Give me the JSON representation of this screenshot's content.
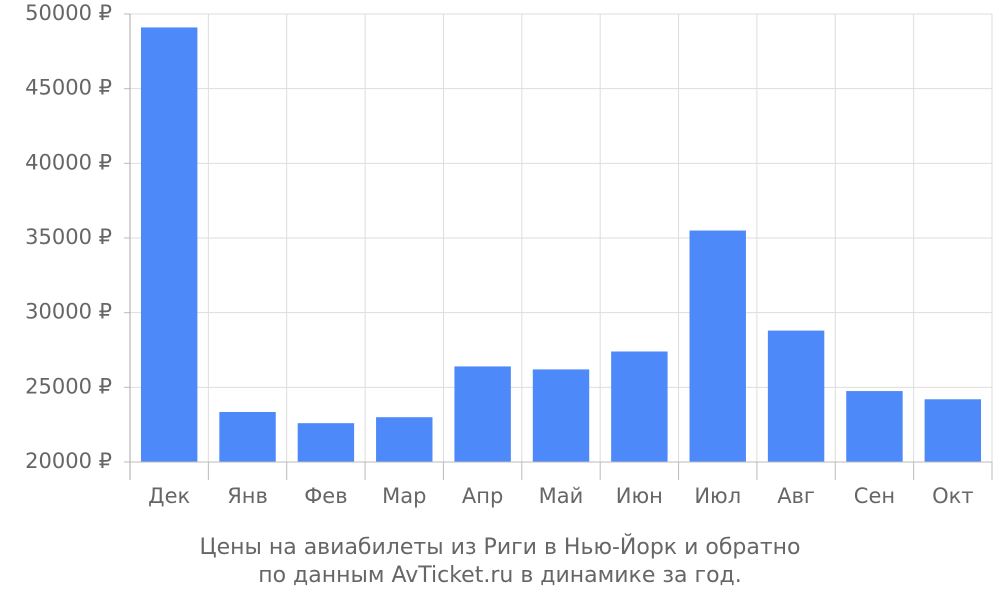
{
  "chart_data": {
    "type": "bar",
    "title": "Цены на авиабилеты из Риги в Нью-Йорк и обратно",
    "subtitle": "по данным AvTicket.ru в динамике за год.",
    "categories": [
      "Дек",
      "Янв",
      "Фев",
      "Мар",
      "Апр",
      "Май",
      "Июн",
      "Июл",
      "Авг",
      "Сен",
      "Окт"
    ],
    "values": [
      49100,
      23350,
      22600,
      23000,
      26400,
      26200,
      27400,
      35500,
      28800,
      24750,
      24200
    ],
    "color": "#4d89f9",
    "ylim": [
      20000,
      50000
    ],
    "yticks": [
      {
        "value": 20000,
        "label": "20000 ₽"
      },
      {
        "value": 25000,
        "label": "25000 ₽"
      },
      {
        "value": 30000,
        "label": "30000 ₽"
      },
      {
        "value": 35000,
        "label": "35000 ₽"
      },
      {
        "value": 40000,
        "label": "40000 ₽"
      },
      {
        "value": 45000,
        "label": "45000 ₽"
      },
      {
        "value": 50000,
        "label": "50000 ₽"
      }
    ],
    "grid": true
  }
}
